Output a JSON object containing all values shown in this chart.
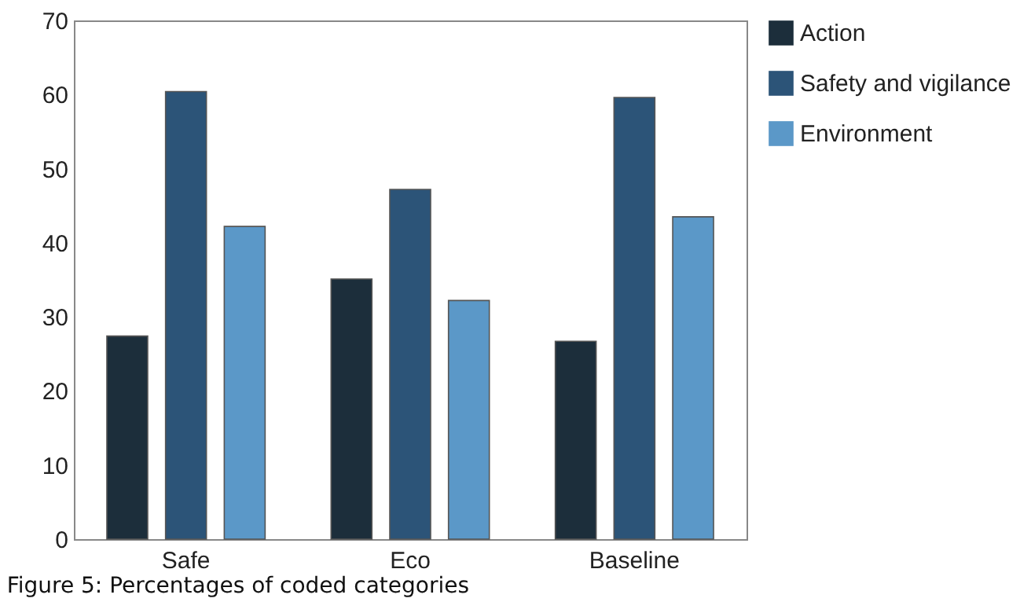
{
  "chart_data": {
    "type": "bar",
    "categories": [
      "Safe",
      "Eco",
      "Baseline"
    ],
    "series": [
      {
        "name": "Action",
        "color": "#1c2e3b",
        "values": [
          27.4,
          35.1,
          26.7
        ]
      },
      {
        "name": "Safety and vigilance",
        "color": "#2c5478",
        "values": [
          60.4,
          47.2,
          59.6
        ]
      },
      {
        "name": "Environment",
        "color": "#5b98c8",
        "values": [
          42.2,
          32.2,
          43.5
        ]
      }
    ],
    "ylim": [
      0,
      70
    ],
    "yticks": [
      0,
      10,
      20,
      30,
      40,
      50,
      60,
      70
    ],
    "grid": false,
    "legend": "right",
    "annotations": [
      "Figure 5: Percentages of coded categories"
    ]
  }
}
